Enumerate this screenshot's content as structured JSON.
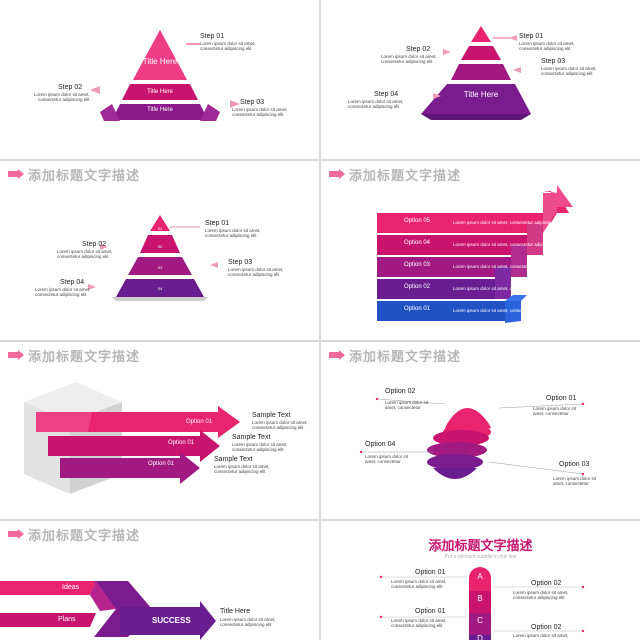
{
  "header_title": "添加标题文字描述",
  "lorem": "Lorem ipsum dolor sit amet, consectetur adipiscing elit",
  "lorem_line1": "Lorem ipsum dolor sit amet,",
  "lorem_line2": "consectetur adipiscing elit",
  "lorem_short1": "Lorem ipsum dolor sit",
  "lorem_short2": "amet, consectetur",
  "slide1": {
    "title": "Title Here",
    "tier2": "Title Here",
    "tier3": "Title Here",
    "steps": [
      "Step 01",
      "Step 02",
      "Step 03"
    ]
  },
  "slide2": {
    "title": "Title Here",
    "steps": [
      "Step 01",
      "Step 02",
      "Step 03",
      "Step 04"
    ]
  },
  "slide3": {
    "steps": [
      "Step 01",
      "Step 02",
      "Step 03",
      "Step 04"
    ],
    "tier_labels": [
      "01",
      "02",
      "03",
      "04"
    ]
  },
  "slide4": {
    "options": [
      "Option 05",
      "Option 04",
      "Option 03",
      "Option 02",
      "Option 01"
    ]
  },
  "slide5": {
    "options": [
      "Option 01",
      "Option 01",
      "Option 01"
    ],
    "samples": [
      "Sample Text",
      "Sample Text",
      "Sample Text"
    ]
  },
  "slide6": {
    "options": [
      "Option 02",
      "Option 01",
      "Option 04",
      "Option 03"
    ]
  },
  "slide7": {
    "items": [
      "Ideas",
      "Plans"
    ],
    "success": "SUCCESS",
    "title": "Title Here"
  },
  "slide8": {
    "title": "添加标题文字描述",
    "subtitle": "Put a relevant subtitle in this line",
    "letters": [
      "A",
      "B",
      "C",
      "D"
    ],
    "options_left": [
      "Option 01",
      "Option 01"
    ],
    "options_right": [
      "Option 02",
      "Option 02"
    ]
  },
  "colors": {
    "pink": "#e8246e",
    "magenta": "#c8146f",
    "purple": "#8b1a8a",
    "violet": "#6a1d91",
    "blue": "#2152c4"
  }
}
